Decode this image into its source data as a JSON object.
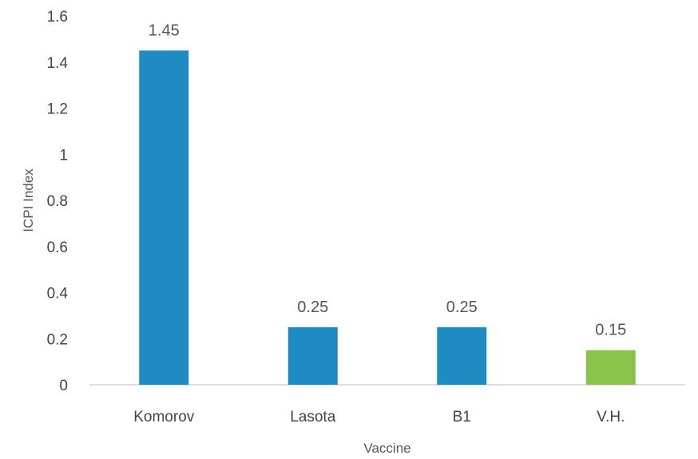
{
  "chart_data": {
    "type": "bar",
    "title": "",
    "xlabel": "Vaccine",
    "ylabel": "ICPI Index",
    "categories": [
      "Komorov",
      "Lasota",
      "B1",
      "V.H."
    ],
    "values": [
      1.45,
      0.25,
      0.25,
      0.15
    ],
    "value_labels": [
      "1.45",
      "0.25",
      "0.25",
      "0.15"
    ],
    "bar_colors": [
      "#1f8bc2",
      "#1f8bc2",
      "#1f8bc2",
      "#8bc34a"
    ],
    "ylim": [
      0,
      1.6
    ],
    "yticks": [
      0,
      0.2,
      0.4,
      0.6,
      0.8,
      1,
      1.2,
      1.4,
      1.6
    ],
    "ytick_labels": [
      "0",
      "0.2",
      "0.4",
      "0.6",
      "0.8",
      "1",
      "1.2",
      "1.4",
      "1.6"
    ],
    "grid": false,
    "legend": "none",
    "axis_color": "#bfbfbf"
  }
}
